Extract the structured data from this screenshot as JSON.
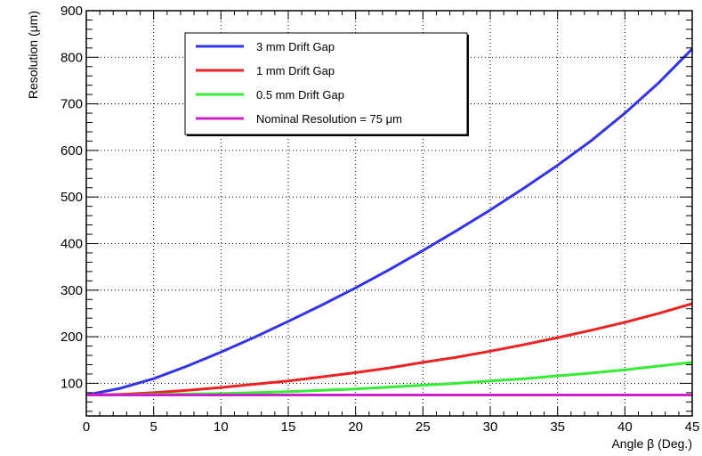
{
  "chart_data": {
    "type": "line",
    "xlabel": "Angle β (Deg.)",
    "ylabel": "Resolution (μm)",
    "xlim": [
      0,
      45
    ],
    "ylim": [
      30,
      900
    ],
    "xticks": [
      0,
      5,
      10,
      15,
      20,
      25,
      30,
      35,
      40,
      45
    ],
    "yticks": [
      100,
      200,
      300,
      400,
      500,
      600,
      700,
      800,
      900
    ],
    "grid": true,
    "legend_position": "top-left",
    "x": [
      0,
      2.5,
      5,
      7.5,
      10,
      12.5,
      15,
      17.5,
      20,
      22.5,
      25,
      27.5,
      30,
      32.5,
      35,
      37.5,
      40,
      42.5,
      45
    ],
    "series": [
      {
        "name": "3 mm Drift Gap",
        "color": "#3333ee",
        "values": [
          75,
          89,
          110,
          137,
          167,
          199,
          233,
          268,
          305,
          344,
          385,
          428,
          472,
          519,
          568,
          621,
          680,
          745,
          818
        ]
      },
      {
        "name": "1 mm Drift Gap",
        "color": "#ee2222",
        "values": [
          75,
          76,
          80,
          85,
          91,
          98,
          105,
          114,
          123,
          133,
          145,
          156,
          169,
          183,
          198,
          214,
          231,
          250,
          271
        ]
      },
      {
        "name": "0.5 mm Drift Gap",
        "color": "#33ee33",
        "values": [
          75,
          75,
          76,
          77,
          78,
          80,
          82,
          85,
          88,
          92,
          96,
          100,
          105,
          110,
          116,
          122,
          129,
          137,
          145
        ]
      },
      {
        "name": "Nominal Resolution = 75 μm",
        "color": "#cc22cc",
        "values": [
          75,
          75,
          75,
          75,
          75,
          75,
          75,
          75,
          75,
          75,
          75,
          75,
          75,
          75,
          75,
          75,
          75,
          75,
          75
        ]
      }
    ]
  }
}
